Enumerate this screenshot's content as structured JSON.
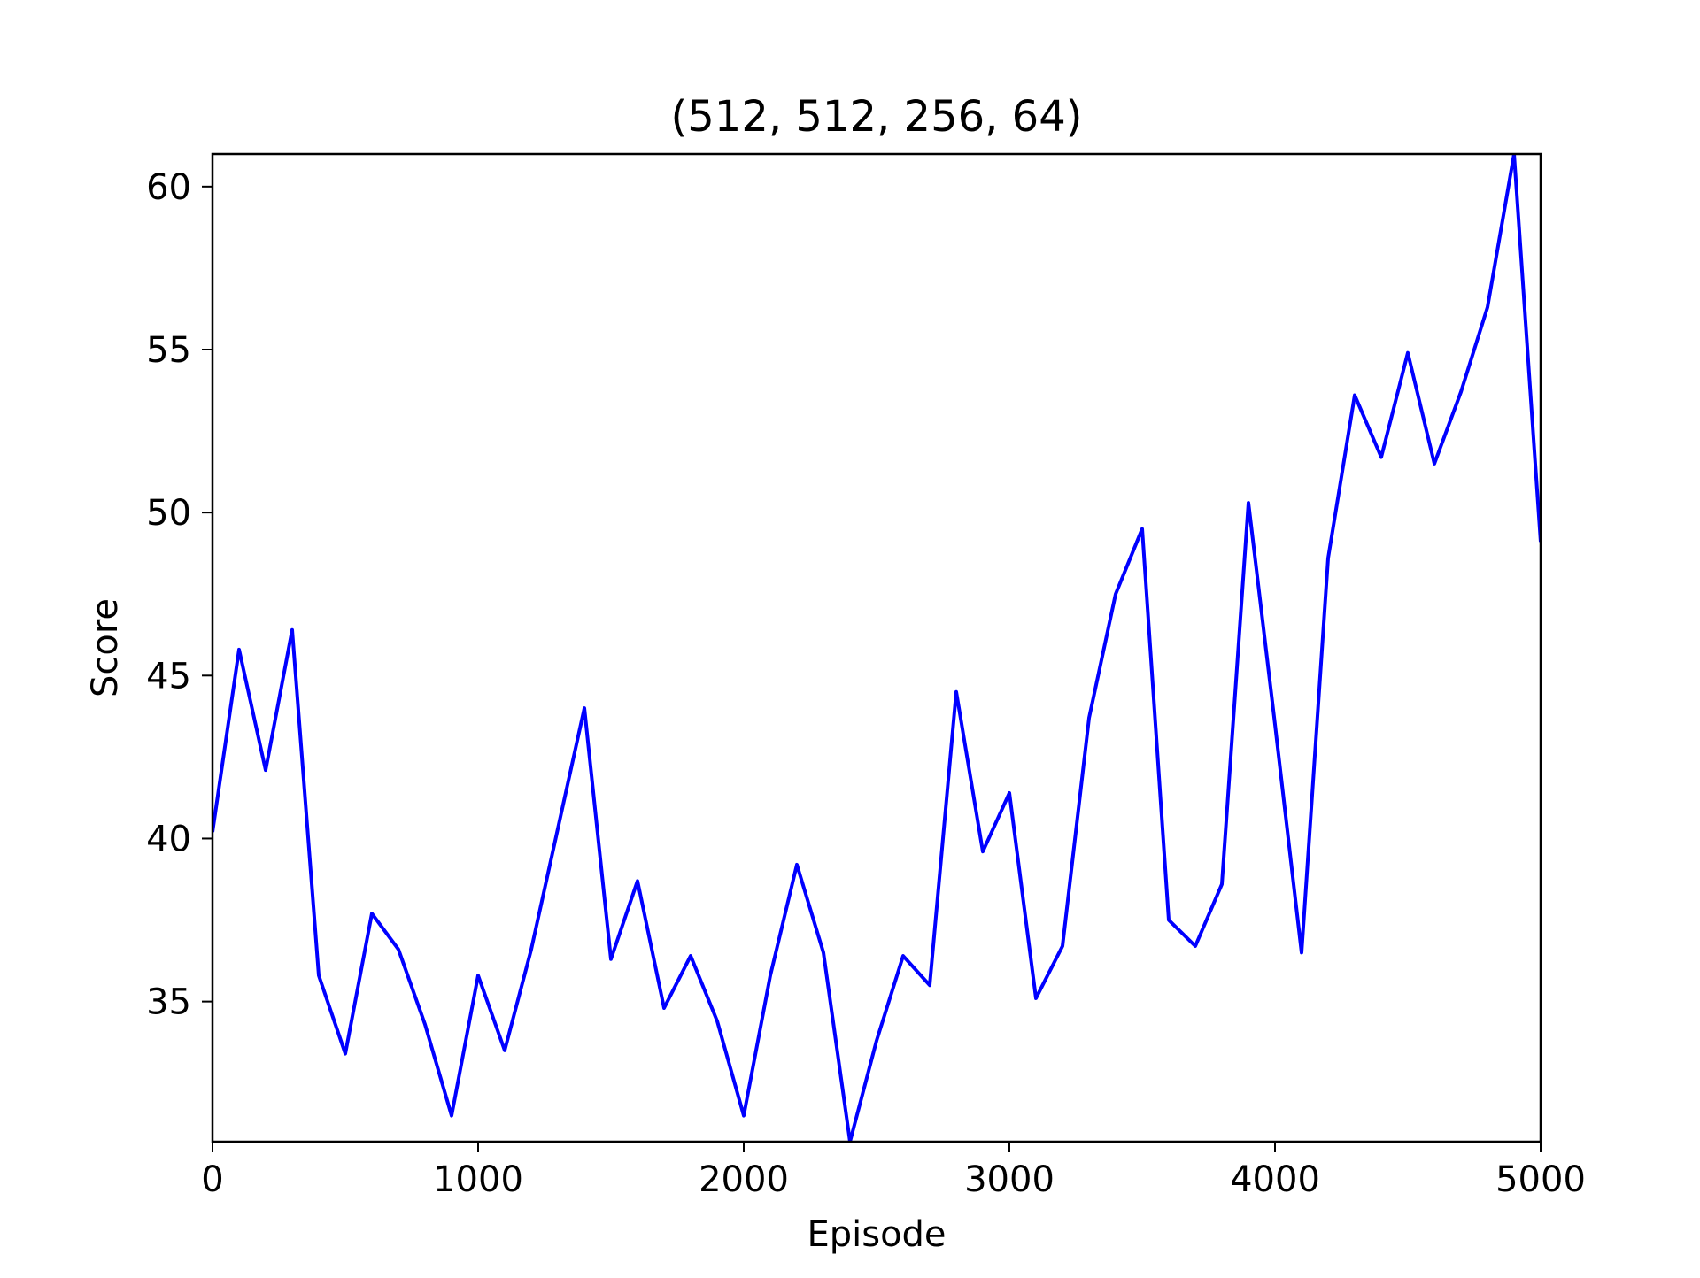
{
  "chart_data": {
    "type": "line",
    "title": "(512, 512, 256, 64)",
    "xlabel": "Episode",
    "ylabel": "Score",
    "xlim": [
      0,
      5000
    ],
    "ylim": [
      30.7,
      61.0
    ],
    "xticks": [
      0,
      1000,
      2000,
      3000,
      4000,
      5000
    ],
    "yticks": [
      35,
      40,
      45,
      50,
      55,
      60
    ],
    "grid": false,
    "series": [
      {
        "color": "#0000ff",
        "x": [
          0,
          100,
          200,
          300,
          400,
          500,
          600,
          700,
          800,
          900,
          1000,
          1100,
          1200,
          1300,
          1400,
          1500,
          1600,
          1700,
          1800,
          1900,
          2000,
          2100,
          2200,
          2300,
          2400,
          2500,
          2600,
          2700,
          2800,
          2900,
          3000,
          3100,
          3200,
          3300,
          3400,
          3500,
          3600,
          3700,
          3800,
          3900,
          4000,
          4100,
          4200,
          4300,
          4400,
          4500,
          4600,
          4700,
          4800,
          4900,
          5000
        ],
        "values": [
          40.2,
          45.8,
          42.1,
          46.4,
          35.8,
          33.4,
          37.7,
          36.6,
          34.3,
          31.5,
          35.8,
          33.5,
          36.6,
          40.3,
          44.0,
          36.3,
          38.7,
          34.8,
          36.4,
          34.4,
          31.5,
          35.8,
          39.2,
          36.5,
          30.7,
          33.8,
          36.4,
          35.5,
          44.5,
          39.6,
          41.4,
          35.1,
          36.7,
          43.7,
          47.5,
          49.5,
          37.5,
          36.7,
          38.6,
          50.3,
          43.5,
          36.5,
          48.6,
          53.6,
          51.7,
          54.9,
          51.5,
          53.7,
          56.3,
          61.0,
          49.1
        ]
      }
    ]
  }
}
